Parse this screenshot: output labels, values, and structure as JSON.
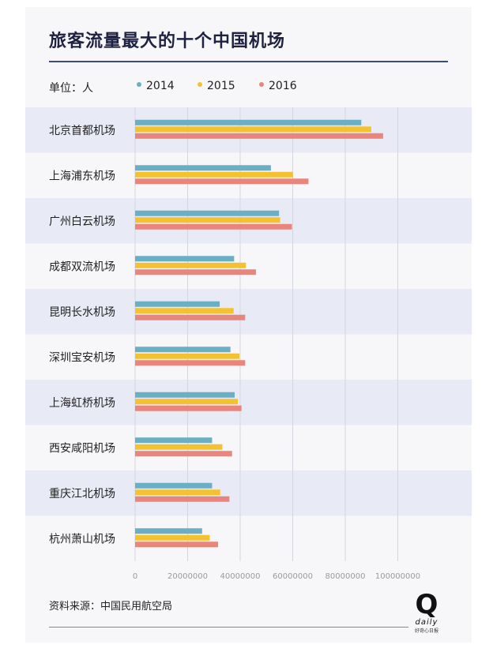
{
  "chart_data": {
    "type": "bar",
    "orientation": "horizontal",
    "title": "旅客流量最大的十个中国机场",
    "unit_label": "单位：人",
    "categories": [
      "北京首都机场",
      "上海浦东机场",
      "广州白云机场",
      "成都双流机场",
      "昆明长水机场",
      "深圳宝安机场",
      "上海虹桥机场",
      "西安咸阳机场",
      "重庆江北机场",
      "杭州萧山机场"
    ],
    "series": [
      {
        "name": "2014",
        "color": "#6aafc3",
        "values": [
          86100000,
          51700000,
          54800000,
          37700000,
          32200000,
          36300000,
          37900000,
          29300000,
          29300000,
          25500000
        ]
      },
      {
        "name": "2015",
        "color": "#f4c230",
        "values": [
          89900000,
          60100000,
          55200000,
          42200000,
          37500000,
          39700000,
          39100000,
          33200000,
          32400000,
          28400000
        ]
      },
      {
        "name": "2016",
        "color": "#e8857c",
        "values": [
          94400000,
          66000000,
          59700000,
          46000000,
          41900000,
          41900000,
          40500000,
          36900000,
          35900000,
          31600000
        ]
      }
    ],
    "xlim": [
      0,
      100000000
    ],
    "x_ticks": [
      "0",
      "20000000",
      "40000000",
      "60000000",
      "80000000",
      "100000000"
    ],
    "grid": true,
    "legend_position": "top-left"
  },
  "source": "资料来源：中国民用航空局",
  "brand": {
    "logo_letter": "Q",
    "logo_word": "daily",
    "logo_tagline": "好奇心日报"
  }
}
